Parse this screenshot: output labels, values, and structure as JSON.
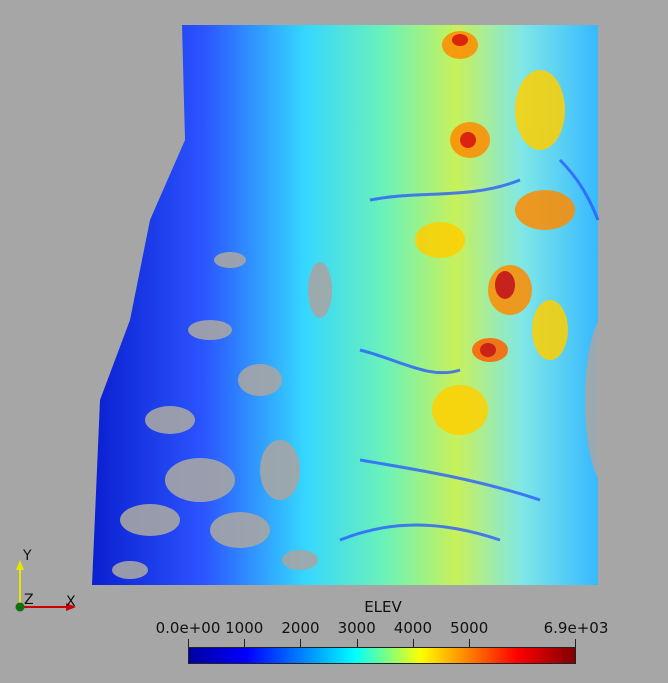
{
  "colorbar": {
    "title": "ELEV",
    "range": [
      0,
      6900
    ],
    "tick_labels": [
      "0.0e+00",
      "1000",
      "2000",
      "3000",
      "4000",
      "5000",
      "6.9e+03"
    ],
    "tick_values": [
      0,
      1000,
      2000,
      3000,
      4000,
      5000,
      6900
    ],
    "colors": [
      "#0000a0",
      "#0000ff",
      "#00ffff",
      "#ffff00",
      "#ff0000",
      "#800000"
    ]
  },
  "axes": {
    "y_label": "Y",
    "z_label": "Z",
    "x_label": "X"
  },
  "colors": {
    "background": "#a6a6a6",
    "axis_y": "#e6e600",
    "axis_x": "#cc0000",
    "axis_origin": "#107010"
  }
}
